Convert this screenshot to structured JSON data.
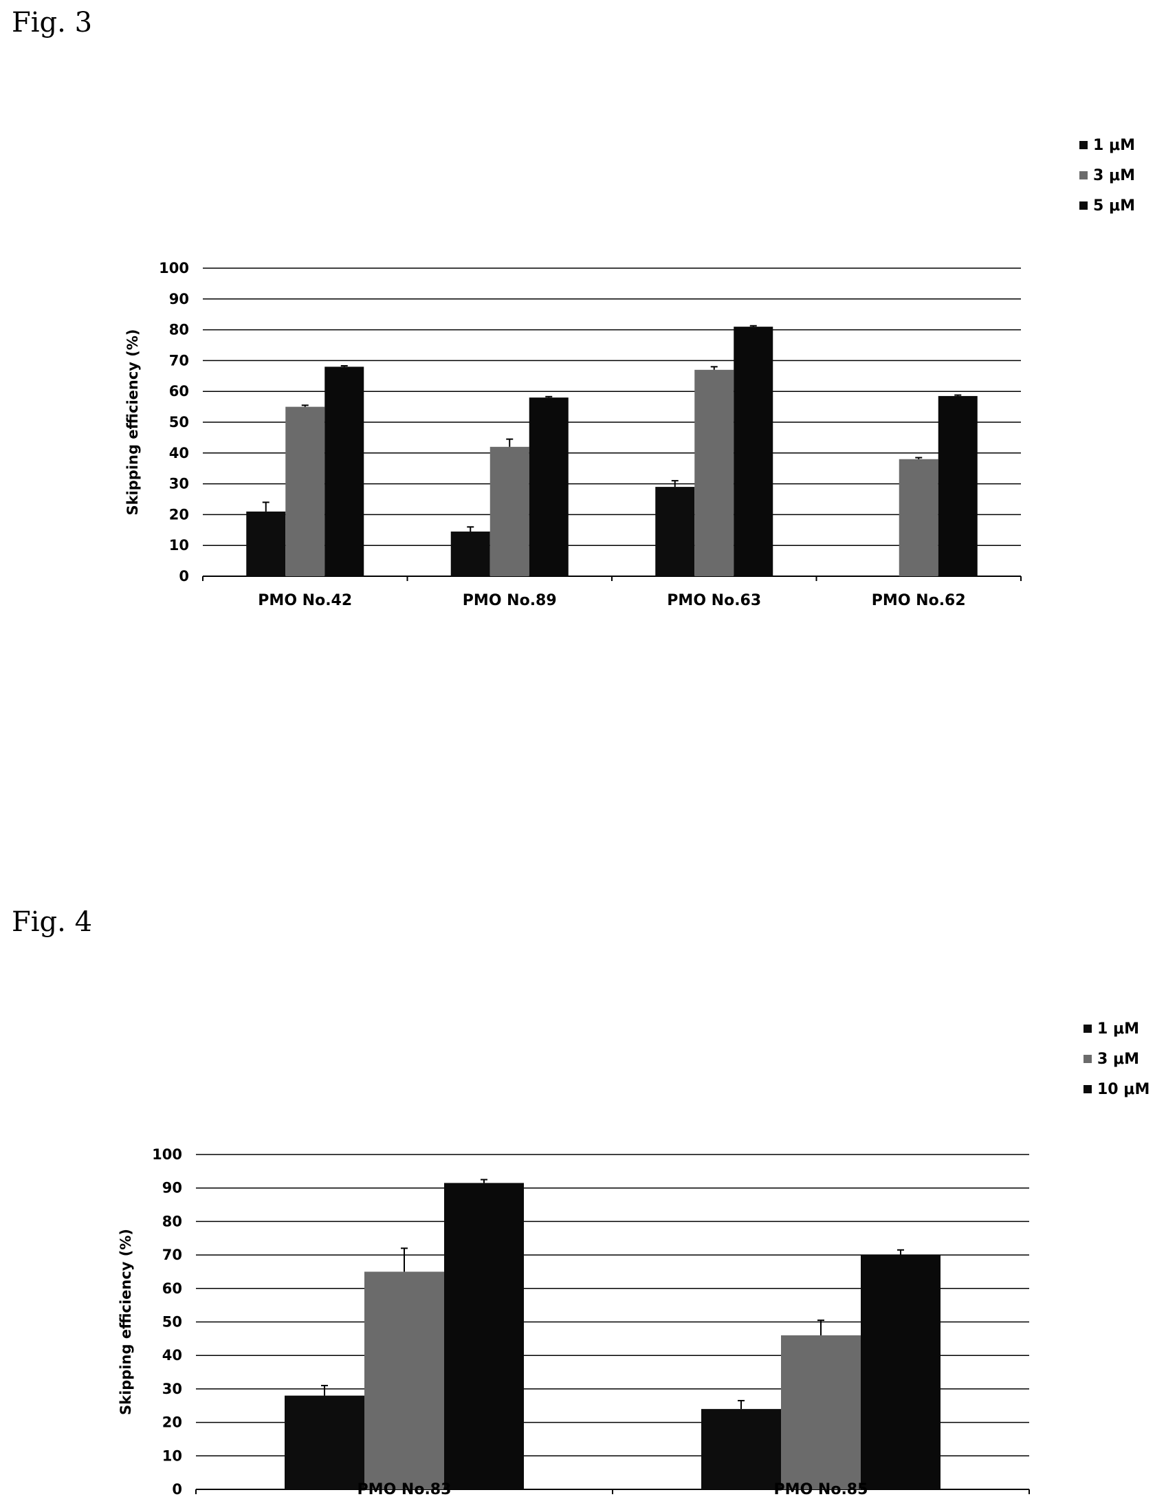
{
  "figures": [
    {
      "label": "Fig. 3"
    },
    {
      "label": "Fig. 4"
    }
  ],
  "colors": {
    "dose_low": "#0d0d0d",
    "dose_mid": "#6b6b6b",
    "dose_high": "#0a0a0a",
    "gridline": "#000000"
  },
  "chart_data": [
    {
      "type": "bar",
      "title": "",
      "ylabel": "Skipping efficiency (%)",
      "xlabel": "",
      "ylim": [
        0,
        100
      ],
      "yticks": [
        0,
        10,
        20,
        30,
        40,
        50,
        60,
        70,
        80,
        90,
        100
      ],
      "grid": true,
      "legend": "top-right",
      "categories": [
        "PMO No.42",
        "PMO No.89",
        "PMO No.63",
        "PMO No.62"
      ],
      "series": [
        {
          "name": "1 μM",
          "values": [
            21,
            14.5,
            29,
            null
          ],
          "errors": [
            3,
            1.5,
            2,
            null
          ]
        },
        {
          "name": "3 μM",
          "values": [
            55,
            42,
            67,
            38
          ],
          "errors": [
            0.5,
            2.5,
            1,
            0.5
          ]
        },
        {
          "name": "5 μM",
          "values": [
            68,
            58,
            81,
            58.5
          ],
          "errors": [
            0.3,
            0.3,
            0.3,
            0.3
          ]
        }
      ]
    },
    {
      "type": "bar",
      "title": "",
      "ylabel": "Skipping efficiency (%)",
      "xlabel": "",
      "ylim": [
        0,
        100
      ],
      "yticks": [
        0,
        10,
        20,
        30,
        40,
        50,
        60,
        70,
        80,
        90,
        100
      ],
      "grid": true,
      "legend": "top-right",
      "categories": [
        "PMO No.83",
        "PMO No.85"
      ],
      "series": [
        {
          "name": "1 μM",
          "values": [
            28,
            24
          ],
          "errors": [
            3,
            2.5
          ]
        },
        {
          "name": "3 μM",
          "values": [
            65,
            46
          ],
          "errors": [
            7,
            4.5
          ]
        },
        {
          "name": "10 μM",
          "values": [
            91.5,
            70
          ],
          "errors": [
            1,
            1.5
          ]
        }
      ]
    }
  ]
}
